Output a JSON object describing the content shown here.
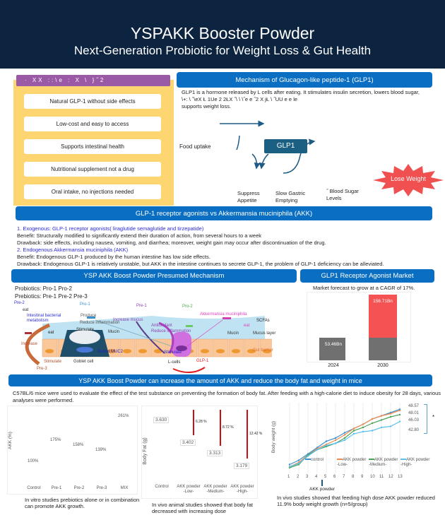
{
  "header": {
    "title": "YSPAKK Booster Powder",
    "subtitle": "Next-Generation Probiotic for Weight Loss & Gut Health"
  },
  "benefits": {
    "header": "·  XX  ::\\e  :  X \\  }˝2",
    "items": [
      "Natural GLP-1 without side effects",
      "Low-cost and easy to access",
      "Supports intestinal health",
      "Nutritional supplement not a drug",
      "Oral intake, no injections needed"
    ]
  },
  "glp1_mechanism": {
    "title": "Mechanism of Glucagon-like peptide-1 (GLP1)",
    "text1": "GLP1 is a hormone released by L cells after eating. It stimulates insulin secretion, lowers blood sugar,",
    "text2": "\\+: \\  ˝\\eX Ł  1Ue  2    2ŁX ˝\\ \\ \\˝e  e   ˝2  X  jŁ \\ ˝UU e e   le",
    "text3": "supports weight loss.",
    "food_uptake": "Food uptake",
    "glp1_box": "GLP1",
    "suppress": "Suppress Appetite",
    "gastric": "Slow Gastric Emptying",
    "sugar": "˝ Blood Sugar Levels",
    "lose_weight": "Lose Weight"
  },
  "comparison": {
    "title": "GLP-1 receptor agonists vs Akkermansia muciniphila (AKK)",
    "lines": [
      {
        "text": "1.  Exogenous: GLP-1 receptor agonists( liraglutide semaglutide and tirzepatide)",
        "color": "#2b2bdc"
      },
      {
        "text": "Benefit: Structurally modified to significantly extend their duration of action, from several hours to a week",
        "color": "#222"
      },
      {
        "text": "Drawback: side effects, including nausea, vomiting, and diarrhea; moreover, weight gain may occur after discontinuation of the drug.",
        "color": "#222"
      },
      {
        "text": "2.  Endogenous Akkermansia muciniphila (AKK)",
        "color": "#2b2bdc"
      },
      {
        "text": "Benefit: Endogenous GLP-1 produced by the human intestine has low side effects.",
        "color": "#222"
      },
      {
        "text": "Drawback: Endogenous GLP-1 is relatively unstable, but AKK in the intestine continues to secrete GLP-1, the problem of GLP-1 deficiency can be alleviated.",
        "color": "#222"
      }
    ]
  },
  "presumed": {
    "title": "YSP AKK Boost Powder Presumed Mechanism",
    "probiotics": "Probiotics: Pro-1    Pro-2",
    "prebiotics": "Prebiotics: Pre-1    Pre-2    Pre-3",
    "labels": {
      "pre2a": "Pre-2",
      "eat1": "eat",
      "metab": "Intestinal bacterial metabolism",
      "produce": "Produce",
      "pro1": "Pro-1",
      "reduce1": "Reduce inflammation",
      "stimulate1": "Stimulate",
      "mucin1": "Mucin",
      "eat2": "eat",
      "increase": "Increase",
      "stimulate2": "Stimulate",
      "pre3": "Pre-3",
      "goblet": "Goblet cell",
      "muc2": "Secret MUC2",
      "pre1": "Pre-1",
      "incmucus": "Increase mucus",
      "antiox": "Antioxidant",
      "reduce2": "Reduce inflammation",
      "pro2": "Pro-2",
      "akk": "Akkermansia muciniphila",
      "eat3": "eat",
      "scfa": "SCFAs",
      "mucin2": "Mucin",
      "mucus_layer": "Mucus layer",
      "gut_barrier": "Gut barrier",
      "stimulate3": "Stimulate",
      "lcells": "L-cells",
      "glp": "GLP-1"
    }
  },
  "market": {
    "title": "GLP1 Receptor Agonist Market",
    "subtitle": "Market forecast to grow at a CAGR of 17%."
  },
  "mice": {
    "title": "YSP AKK Boost Powder can  increase the amount of AKK and reduce the body fat and weight in mice",
    "intro": "C57BL/6 mice were used to evaluate the effect of the test substance on preventing the formation of body fat. After feeding with a high-calorie diet to induce obesity for 28 days, various analyses were performed.",
    "cap1": "In vitro studies prebiotics alone or in combination can promote AKK growth.",
    "cap2": "In vivo animal studies showed that body fat decreased with increasing dose",
    "cap3": "In vivo studies showed that feeding high dose AKK powder reduced 11.9% body weight growth (n=5/group)",
    "arrow_label": "AKK powder",
    "sig": "*"
  },
  "colors": {
    "navy": "#0c2440",
    "blue": "#0a6fc2",
    "yellow": "#fdd672",
    "purple": "#9b5aa5",
    "red": "#f05050"
  },
  "chart_data": [
    {
      "type": "bar",
      "categories": [
        "2024",
        "2030"
      ],
      "series": [
        {
          "values": [
            53.46,
            156.71
          ]
        }
      ],
      "data_labels": [
        "53.46Bn",
        "156.71Bn"
      ],
      "unit": "Bn"
    },
    {
      "type": "bar",
      "categories": [
        "Control",
        "Pre-1",
        "Pre-2",
        "Pre-3",
        "MIX"
      ],
      "values": [
        100,
        175,
        158,
        139,
        261
      ],
      "data_labels": [
        "100%",
        "175%",
        "158%",
        "139%",
        "261%"
      ],
      "ylabel": "AKK (%)"
    },
    {
      "type": "bar",
      "categories": [
        "Control",
        "AKK powder -Low-",
        "AKK powder -Medium-",
        "AKK powder -High-"
      ],
      "values": [
        3.63,
        3.402,
        3.313,
        3.179
      ],
      "data_labels": [
        "3.630",
        "3.402",
        "3.313",
        "3.179"
      ],
      "reductions": [
        "6.28 %",
        "8.72 %",
        "12.42 %"
      ],
      "ylabel": "Body Fat (g)"
    },
    {
      "type": "line",
      "x": [
        1,
        2,
        3,
        4,
        5,
        6,
        7,
        8,
        9,
        10,
        11,
        12,
        13
      ],
      "ylabel": "Body weight (g)",
      "legend": "bottom",
      "series": [
        {
          "name": "control",
          "color": "#3a8fd0",
          "values": [
            22.5,
            24.5,
            27.5,
            30.5,
            33.5,
            35,
            37.5,
            39.5,
            41.5,
            44,
            45.5,
            47,
            48.57
          ]
        },
        {
          "name": "AKK powder -Low-",
          "color": "#f08a4b",
          "values": [
            21.5,
            23.5,
            27,
            30,
            32,
            34,
            36.5,
            39.5,
            41.5,
            44,
            45.5,
            46.5,
            48.01
          ]
        },
        {
          "name": "AKK powder -Medium-",
          "color": "#4aa35a",
          "values": [
            21,
            22.5,
            27,
            29.5,
            31,
            32.5,
            35,
            38.5,
            40,
            42,
            43.5,
            45,
            46.03
          ]
        },
        {
          "name": "AKK powder -High-",
          "color": "#5cc1ee",
          "values": [
            21.5,
            23,
            26.5,
            29.5,
            31.5,
            32.5,
            34,
            37,
            38,
            38.5,
            40,
            40.5,
            42.8
          ]
        }
      ],
      "end_labels": [
        "48.57",
        "48.01",
        "46.03",
        "42.80"
      ]
    }
  ]
}
